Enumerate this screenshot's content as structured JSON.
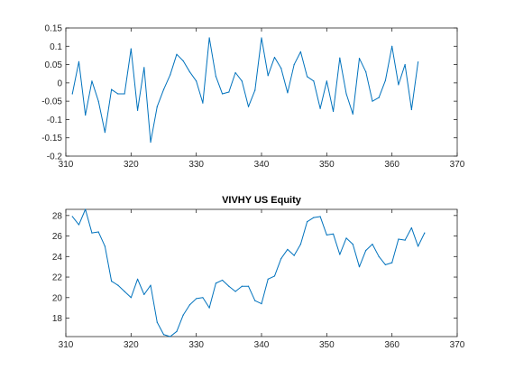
{
  "chart_data": [
    {
      "type": "line",
      "title": "",
      "xlabel": "",
      "ylabel": "",
      "xlim": [
        310,
        370
      ],
      "ylim": [
        -0.2,
        0.15
      ],
      "xticks": [
        310,
        320,
        330,
        340,
        350,
        360,
        370
      ],
      "yticks": [
        -0.2,
        -0.15,
        -0.1,
        -0.05,
        0,
        0.05,
        0.1,
        0.15
      ],
      "xtick_labels": [
        "310",
        "320",
        "330",
        "340",
        "350",
        "360",
        "370"
      ],
      "ytick_labels": [
        "-0.2",
        "-0.15",
        "-0.1",
        "-0.05",
        "0",
        "0.05",
        "0.1",
        "0.15"
      ],
      "grid": false,
      "series": [
        {
          "color": "#0072BD",
          "x": [
            311,
            312,
            313,
            314,
            315,
            316,
            317,
            318,
            319,
            320,
            321,
            322,
            323,
            324,
            325,
            326,
            327,
            328,
            329,
            330,
            331,
            332,
            333,
            334,
            335,
            336,
            337,
            338,
            339,
            340,
            341,
            342,
            343,
            344,
            345,
            346,
            347,
            348,
            349,
            350,
            351,
            352,
            353,
            354,
            355,
            356,
            357,
            358,
            359,
            360,
            361,
            362,
            363,
            364
          ],
          "y": [
            -0.03,
            0.058,
            -0.088,
            0.005,
            -0.05,
            -0.135,
            -0.018,
            -0.03,
            -0.03,
            0.093,
            -0.075,
            0.042,
            -0.162,
            -0.065,
            -0.018,
            0.022,
            0.078,
            0.06,
            0.03,
            0.005,
            -0.055,
            0.123,
            0.018,
            -0.03,
            -0.025,
            0.028,
            0.005,
            -0.065,
            -0.02,
            0.123,
            0.02,
            0.07,
            0.04,
            -0.027,
            0.05,
            0.085,
            0.017,
            0.005,
            -0.07,
            0.005,
            -0.078,
            0.068,
            -0.03,
            -0.085,
            0.067,
            0.03,
            -0.05,
            -0.04,
            0.007,
            0.1,
            -0.005,
            0.05,
            -0.073,
            0.057
          ]
        }
      ]
    },
    {
      "type": "line",
      "title": "VIVHY US Equity",
      "xlabel": "",
      "ylabel": "",
      "xlim": [
        310,
        370
      ],
      "ylim": [
        16.2,
        28.6
      ],
      "xticks": [
        310,
        320,
        330,
        340,
        350,
        360,
        370
      ],
      "yticks": [
        18,
        20,
        22,
        24,
        26,
        28
      ],
      "xtick_labels": [
        "310",
        "320",
        "330",
        "340",
        "350",
        "360",
        "370"
      ],
      "ytick_labels": [
        "18",
        "20",
        "22",
        "24",
        "26",
        "28"
      ],
      "grid": false,
      "series": [
        {
          "color": "#0072BD",
          "x": [
            311,
            312,
            313,
            314,
            315,
            316,
            317,
            318,
            319,
            320,
            321,
            322,
            323,
            324,
            325,
            326,
            327,
            328,
            329,
            330,
            331,
            332,
            333,
            334,
            335,
            336,
            337,
            338,
            339,
            340,
            341,
            342,
            343,
            344,
            345,
            346,
            347,
            348,
            349,
            350,
            351,
            352,
            353,
            354,
            355,
            356,
            357,
            358,
            359,
            360,
            361,
            362,
            363,
            364,
            365
          ],
          "y": [
            27.9,
            27.1,
            28.6,
            26.3,
            26.4,
            25.0,
            21.6,
            21.2,
            20.6,
            20.0,
            21.8,
            20.3,
            21.2,
            17.6,
            16.4,
            16.2,
            16.7,
            18.3,
            19.3,
            19.9,
            20.0,
            19.0,
            21.4,
            21.7,
            21.1,
            20.6,
            21.1,
            21.1,
            19.7,
            19.4,
            21.8,
            22.1,
            23.8,
            24.7,
            24.1,
            25.2,
            27.4,
            27.8,
            27.9,
            26.1,
            26.2,
            24.2,
            25.8,
            25.2,
            23.0,
            24.6,
            25.2,
            24.0,
            23.2,
            23.4,
            25.7,
            25.6,
            26.8,
            25.0,
            26.3
          ]
        }
      ]
    }
  ]
}
